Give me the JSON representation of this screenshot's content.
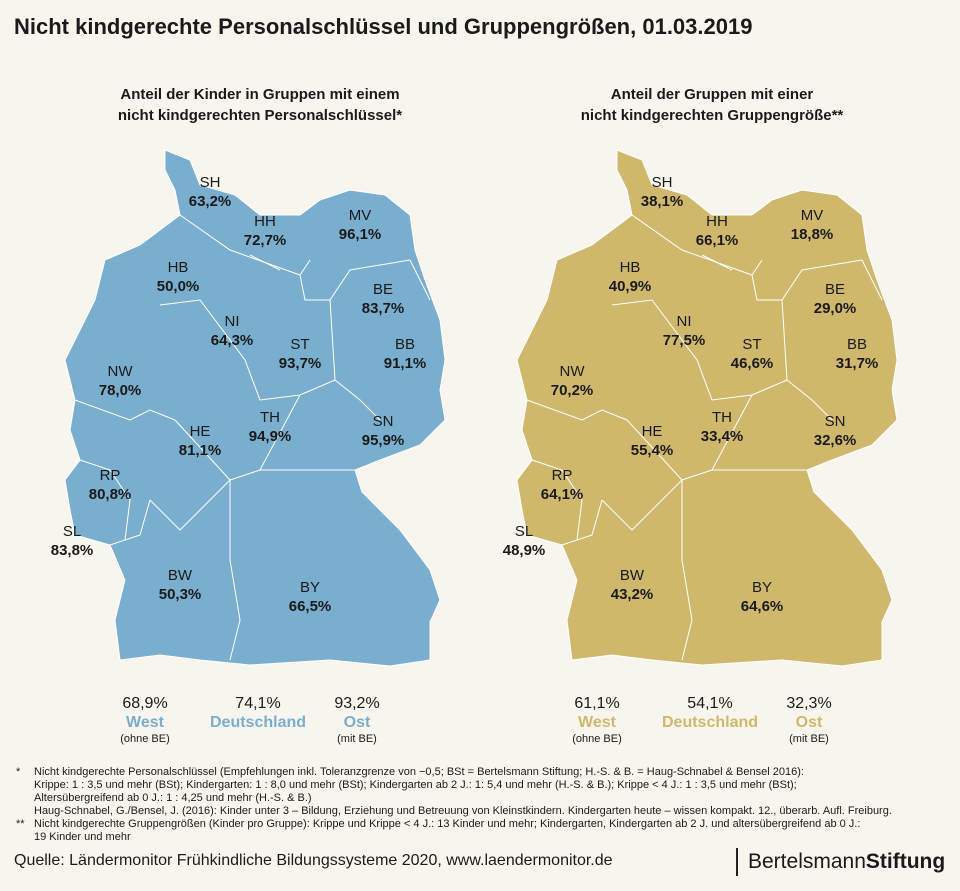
{
  "title": "Nicht kindgerechte Personalschlüssel und Gruppengrößen, 01.03.2019",
  "maps": [
    {
      "subtitle_line1": "Anteil der Kinder in Gruppen mit einem",
      "subtitle_line2": "nicht kindgerechten Personalschlüssel*",
      "color": "#7aaecf",
      "states": {
        "SH": "63,2%",
        "HH": "72,7%",
        "MV": "96,1%",
        "HB": "50,0%",
        "BE": "83,7%",
        "NI": "64,3%",
        "ST": "93,7%",
        "BB": "91,1%",
        "NW": "78,0%",
        "TH": "94,9%",
        "SN": "95,9%",
        "HE": "81,1%",
        "RP": "80,8%",
        "SL": "83,8%",
        "BW": "50,3%",
        "BY": "66,5%"
      },
      "summary": [
        {
          "value": "68,9%",
          "name": "West",
          "sub": "(ohne BE)"
        },
        {
          "value": "74,1%",
          "name": "Deutschland",
          "sub": ""
        },
        {
          "value": "93,2%",
          "name": "Ost",
          "sub": "(mit BE)"
        }
      ]
    },
    {
      "subtitle_line1": "Anteil der Gruppen mit einer",
      "subtitle_line2": "nicht kindgerechten Gruppengröße**",
      "color": "#cfb86c",
      "states": {
        "SH": "38,1%",
        "HH": "66,1%",
        "MV": "18,8%",
        "HB": "40,9%",
        "BE": "29,0%",
        "NI": "77,5%",
        "ST": "46,6%",
        "BB": "31,7%",
        "NW": "70,2%",
        "TH": "33,4%",
        "SN": "32,6%",
        "HE": "55,4%",
        "RP": "64,1%",
        "SL": "48,9%",
        "BW": "43,2%",
        "BY": "64,6%"
      },
      "summary": [
        {
          "value": "61,1%",
          "name": "West",
          "sub": "(ohne BE)"
        },
        {
          "value": "54,1%",
          "name": "Deutschland",
          "sub": ""
        },
        {
          "value": "32,3%",
          "name": "Ost",
          "sub": "(mit BE)"
        }
      ]
    }
  ],
  "footnotes": [
    {
      "mark": "*",
      "lines": [
        "Nicht kindgerechte Personalschlüssel (Empfehlungen inkl. Toleranzgrenze von −0,5; BSt = Bertelsmann Stiftung; H.-S. & B. = Haug-Schnabel & Bensel 2016):",
        "Krippe: 1 : 3,5 und mehr (BSt); Kindergarten: 1 : 8,0 und mehr (BSt); Kindergarten ab 2 J.: 1: 5,4 und mehr (H.-S. & B.); Krippe < 4 J.: 1 : 3,5 und mehr (BSt);",
        "Altersübergreifend ab 0 J.: 1 : 4,25 und mehr (H.-S. & B.)",
        "Haug-Schnabel, G./Bensel, J. (2016): Kinder unter 3 – Bildung, Erziehung und Betreuung von Kleinstkindern. Kindergarten heute – wissen kompakt. 12., überarb. Aufl. Freiburg."
      ]
    },
    {
      "mark": "**",
      "lines": [
        "Nicht kindgerechte Gruppengrößen (Kinder pro Gruppe): Krippe und Krippe < 4 J.: 13 Kinder und mehr; Kindergarten, Kindergarten ab 2 J. und altersübergreifend ab 0 J.:",
        "19 Kinder und mehr"
      ]
    }
  ],
  "source": "Quelle: Ländermonitor Frühkindliche Bildungssysteme 2020, www.laendermonitor.de",
  "logo": {
    "part1": "Bertelsmann",
    "part2": "Stiftung"
  }
}
